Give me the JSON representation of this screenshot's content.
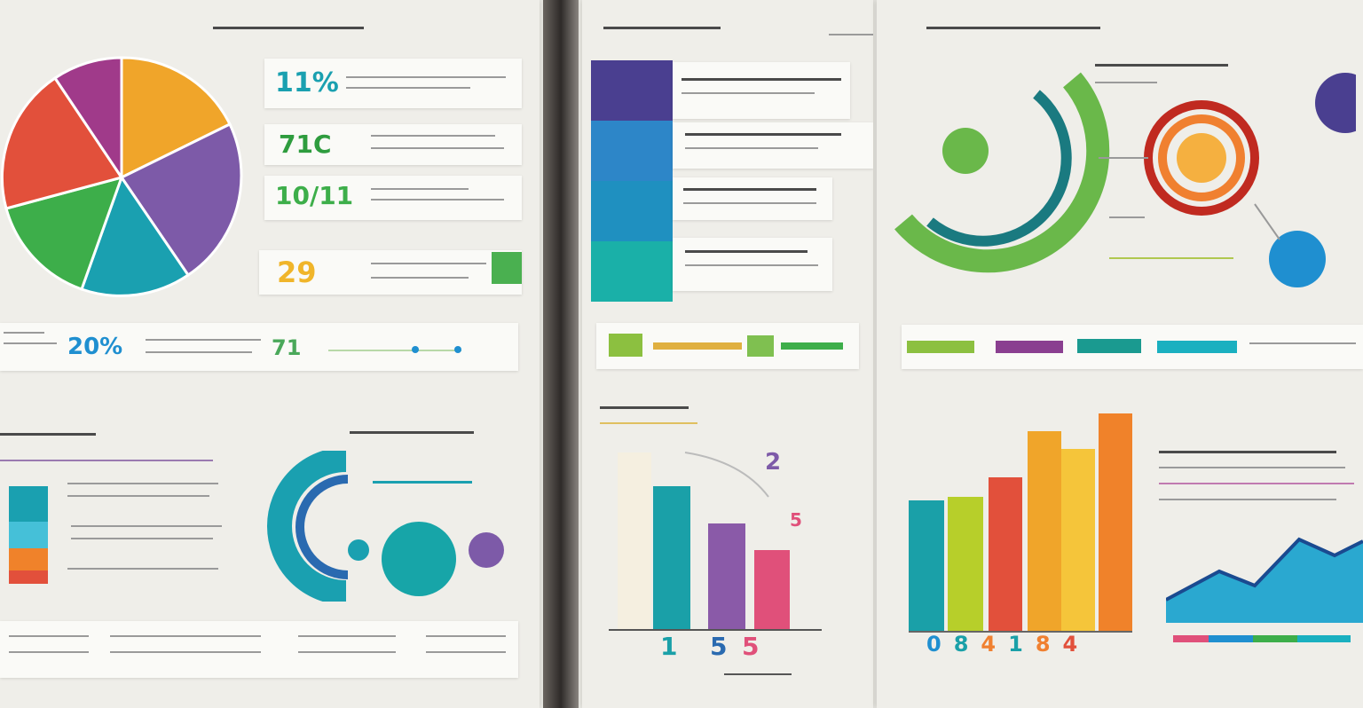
{
  "colors": {
    "purple": "#7b3fa0",
    "orange": "#f0a52a",
    "red": "#e2503b",
    "green": "#3dae4a",
    "teal": "#1aa0b0",
    "violet": "#7d5aa8",
    "blue": "#1f8fd0",
    "lime": "#b7cf2a",
    "pink": "#e0507a",
    "yellow": "#f5c53a"
  },
  "panel_a": {
    "stats": [
      {
        "value": "11%",
        "color": "#1aa0b0"
      },
      {
        "value": "71C",
        "color": "#2e9c3e"
      },
      {
        "value": "10/11",
        "color": "#3dae4a"
      },
      {
        "value": "29",
        "color": "#f0b52a"
      }
    ],
    "footer_stats": [
      {
        "value": "20%",
        "color": "#1f8fd0"
      },
      {
        "value": "71",
        "color": "#4aa85a"
      }
    ]
  },
  "chart_mid": {
    "labels": [
      "1",
      "5",
      "5"
    ],
    "callouts": [
      "2",
      "5"
    ]
  },
  "chart_right": {
    "labels": [
      "0",
      "8",
      "4",
      "1",
      "8",
      "4"
    ]
  }
}
